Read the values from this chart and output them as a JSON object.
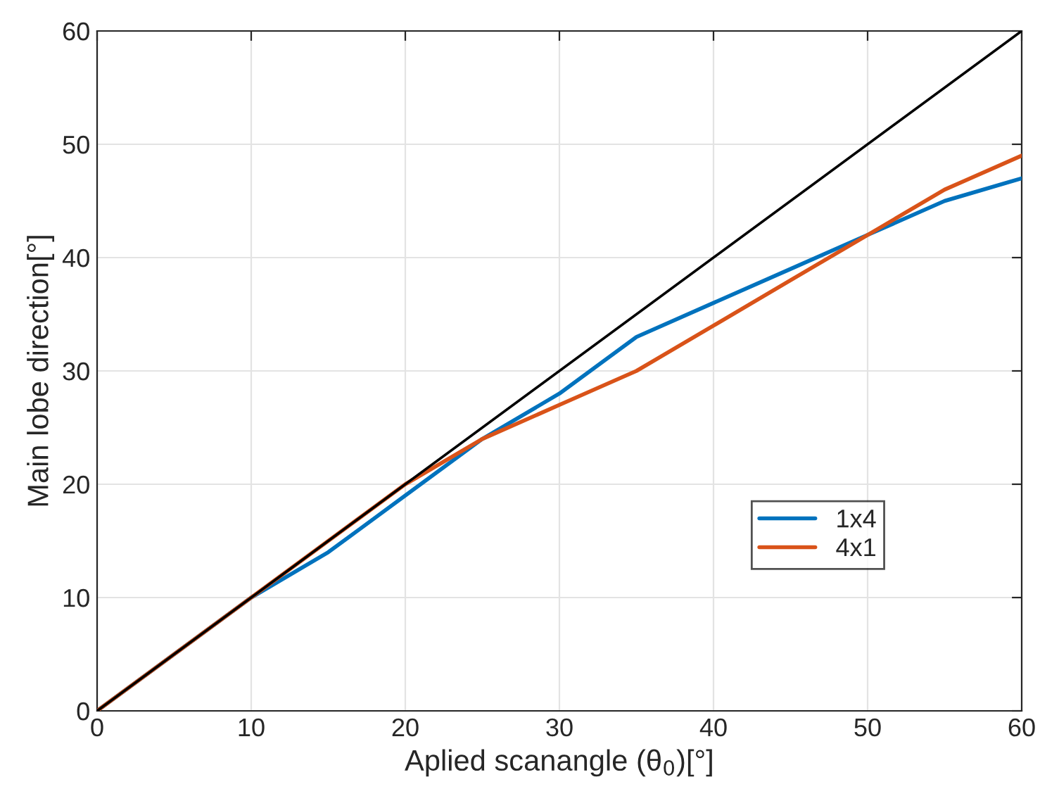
{
  "chart_data": {
    "type": "line",
    "xlabel": "Aplied scanangle (θ$_{0}$)[°]",
    "ylabel": "Main lobe direction[°]",
    "xlim": [
      0,
      60
    ],
    "ylim": [
      0,
      60
    ],
    "xticks": [
      0,
      10,
      20,
      30,
      40,
      50,
      60
    ],
    "yticks": [
      0,
      10,
      20,
      30,
      40,
      50,
      60
    ],
    "grid": true,
    "legend": "lower right",
    "line_style": "solid",
    "marker": "none",
    "series": [
      {
        "name": "1x4",
        "color": "#0072bd",
        "x": [
          0,
          5,
          10,
          15,
          20,
          25,
          30,
          35,
          40,
          45,
          50,
          55,
          60
        ],
        "values": [
          0,
          null,
          10,
          14,
          19,
          24,
          28,
          33,
          36,
          39,
          42,
          45,
          47
        ]
      },
      {
        "name": "4x1",
        "color": "#d95319",
        "x": [
          0,
          5,
          10,
          15,
          20,
          25,
          30,
          35,
          40,
          45,
          50,
          55,
          60
        ],
        "values": [
          0,
          5,
          10,
          15,
          20,
          24,
          27,
          30,
          34,
          38,
          42,
          46,
          49
        ]
      },
      {
        "color": "#000000",
        "x": [
          0,
          60
        ],
        "values": [
          0,
          60
        ]
      }
    ]
  }
}
